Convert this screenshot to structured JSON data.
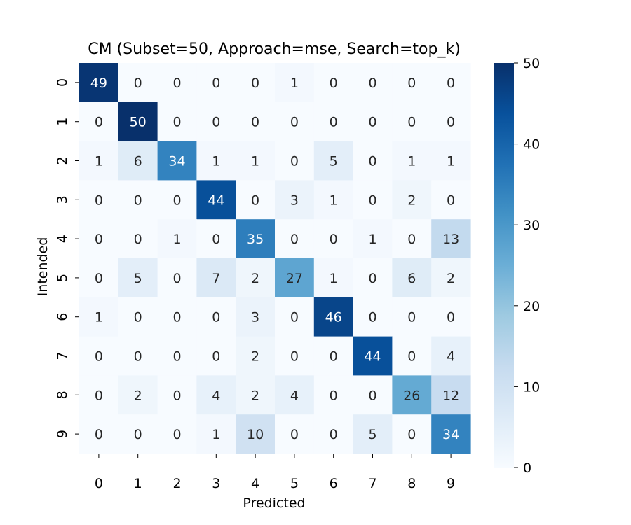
{
  "chart_data": {
    "type": "heatmap",
    "title": "CM (Subset=50, Approach=mse, Search=top_k)",
    "xlabel": "Predicted",
    "ylabel": "Intended",
    "x_categories": [
      "0",
      "1",
      "2",
      "3",
      "4",
      "5",
      "6",
      "7",
      "8",
      "9"
    ],
    "y_categories": [
      "0",
      "1",
      "2",
      "3",
      "4",
      "5",
      "6",
      "7",
      "8",
      "9"
    ],
    "values": [
      [
        49,
        0,
        0,
        0,
        0,
        1,
        0,
        0,
        0,
        0
      ],
      [
        0,
        50,
        0,
        0,
        0,
        0,
        0,
        0,
        0,
        0
      ],
      [
        1,
        6,
        34,
        1,
        1,
        0,
        5,
        0,
        1,
        1
      ],
      [
        0,
        0,
        0,
        44,
        0,
        3,
        1,
        0,
        2,
        0
      ],
      [
        0,
        0,
        1,
        0,
        35,
        0,
        0,
        1,
        0,
        13
      ],
      [
        0,
        5,
        0,
        7,
        2,
        27,
        1,
        0,
        6,
        2
      ],
      [
        1,
        0,
        0,
        0,
        3,
        0,
        46,
        0,
        0,
        0
      ],
      [
        0,
        0,
        0,
        0,
        2,
        0,
        0,
        44,
        0,
        4
      ],
      [
        0,
        2,
        0,
        4,
        2,
        4,
        0,
        0,
        26,
        12
      ],
      [
        0,
        0,
        0,
        1,
        10,
        0,
        0,
        5,
        0,
        34
      ]
    ],
    "colormap": "Blues",
    "color_range": [
      0,
      50
    ],
    "colorbar_ticks": [
      "0",
      "10",
      "20",
      "30",
      "40",
      "50"
    ],
    "colors": {
      "low": "#f7fbff",
      "high": "#08306b"
    }
  }
}
